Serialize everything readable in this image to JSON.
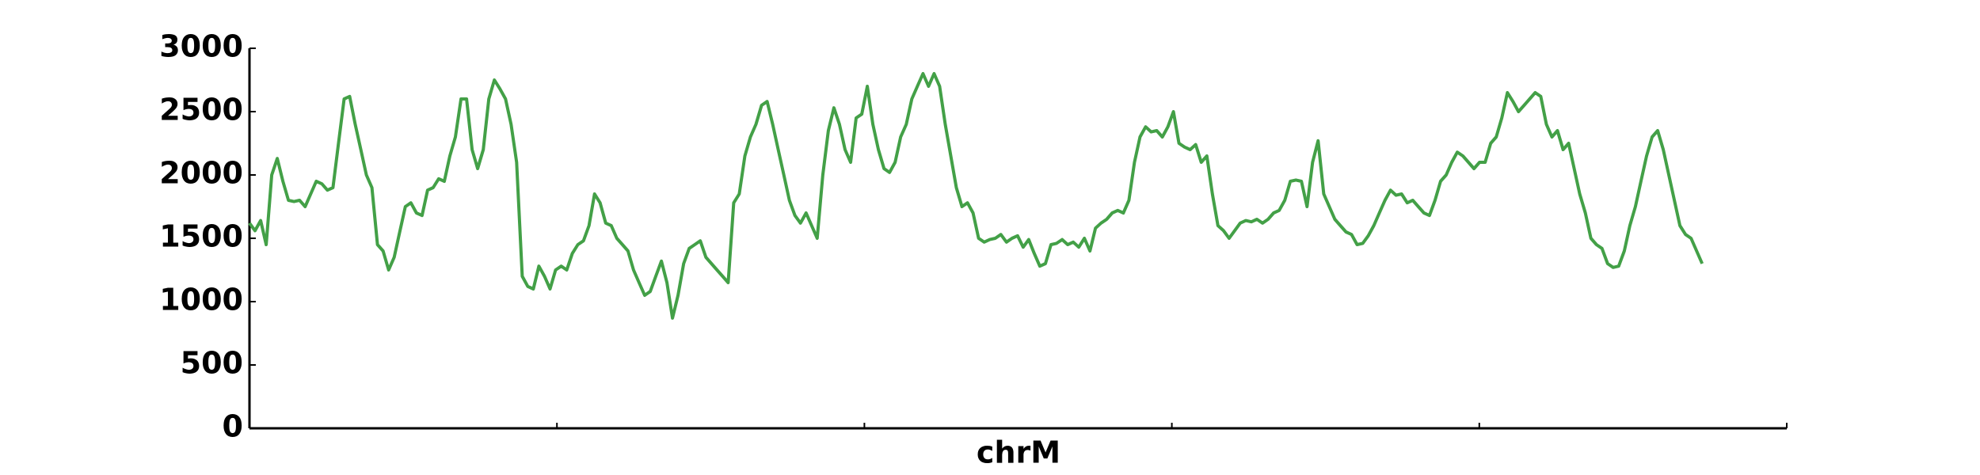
{
  "chart_data": {
    "type": "line",
    "xlabel": "chrM",
    "color": "#43a047",
    "values": [
      1620,
      1560,
      1640,
      1450,
      2000,
      2130,
      1950,
      1800,
      1790,
      1800,
      1750,
      1850,
      1950,
      1930,
      1880,
      1900,
      2250,
      2600,
      2620,
      2400,
      2200,
      2000,
      1900,
      1450,
      1400,
      1250,
      1350,
      1550,
      1750,
      1780,
      1700,
      1680,
      1880,
      1900,
      1970,
      1950,
      2150,
      2300,
      2600,
      2600,
      2200,
      2050,
      2200,
      2600,
      2750,
      2680,
      2600,
      2400,
      2100,
      1200,
      1120,
      1100,
      1280,
      1200,
      1100,
      1250,
      1280,
      1250,
      1380,
      1450,
      1480,
      1600,
      1850,
      1780,
      1620,
      1600,
      1500,
      1450,
      1400,
      1250,
      1150,
      1050,
      1080,
      1200,
      1320,
      1150,
      870,
      1050,
      1300,
      1420,
      1450,
      1480,
      1350,
      1300,
      1250,
      1200,
      1150,
      1780,
      1850,
      2150,
      2300,
      2400,
      2550,
      2580,
      2400,
      2200,
      2000,
      1800,
      1680,
      1620,
      1700,
      1600,
      1500,
      2000,
      2350,
      2530,
      2400,
      2200,
      2100,
      2450,
      2480,
      2700,
      2400,
      2200,
      2050,
      2020,
      2100,
      2300,
      2400,
      2600,
      2700,
      2800,
      2700,
      2800,
      2700,
      2400,
      2150,
      1900,
      1750,
      1780,
      1700,
      1500,
      1470,
      1490,
      1500,
      1530,
      1470,
      1500,
      1520,
      1430,
      1490,
      1380,
      1280,
      1300,
      1450,
      1460,
      1490,
      1450,
      1470,
      1430,
      1500,
      1400,
      1580,
      1620,
      1650,
      1700,
      1720,
      1700,
      1800,
      2100,
      2300,
      2380,
      2340,
      2350,
      2300,
      2380,
      2500,
      2250,
      2220,
      2200,
      2240,
      2100,
      2150,
      1850,
      1600,
      1560,
      1500,
      1560,
      1620,
      1640,
      1630,
      1650,
      1620,
      1650,
      1700,
      1720,
      1800,
      1950,
      1960,
      1950,
      1750,
      2100,
      2270,
      1850,
      1750,
      1650,
      1600,
      1550,
      1530,
      1450,
      1460,
      1520,
      1600,
      1700,
      1800,
      1880,
      1840,
      1850,
      1780,
      1800,
      1750,
      1700,
      1680,
      1800,
      1950,
      2000,
      2100,
      2180,
      2150,
      2100,
      2050,
      2100,
      2100,
      2250,
      2300,
      2450,
      2650,
      2580,
      2500,
      2550,
      2600,
      2650,
      2620,
      2400,
      2300,
      2350,
      2200,
      2250,
      2050,
      1850,
      1700,
      1500,
      1450,
      1420,
      1300,
      1270,
      1280,
      1400,
      1600,
      1750,
      1950,
      2150,
      2300,
      2350,
      2200,
      2000,
      1800,
      1600,
      1530,
      1500,
      1400,
      1300
    ],
    "ylim": [
      0,
      3000
    ],
    "yticks": [
      0,
      500,
      1000,
      1500,
      2000,
      2500,
      3000
    ],
    "grid": false
  }
}
